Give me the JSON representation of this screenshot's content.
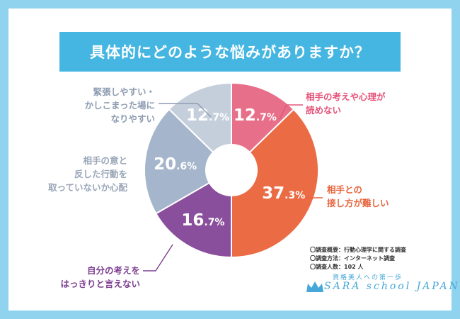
{
  "chart_data": {
    "type": "pie",
    "title": "具体的にどのような悩みがありますか？",
    "slices": [
      {
        "label_lines": [
          "相手の考えや心理が",
          "読めない"
        ],
        "value": 12.7,
        "whole": "12",
        "dec": ".7%",
        "color": "#e76f8a",
        "label_color": "#e6547a"
      },
      {
        "label_lines": [
          "相手との",
          "接し方が難しい"
        ],
        "value": 37.3,
        "whole": "37",
        "dec": ".3%",
        "color": "#eb6b45",
        "label_color": "#e8643c"
      },
      {
        "label_lines": [
          "自分の考えを",
          "はっきりと言えない"
        ],
        "value": 16.7,
        "whole": "16",
        "dec": ".7%",
        "color": "#8a4f9c",
        "label_color": "#7d3f90"
      },
      {
        "label_lines": [
          "相手の意と",
          "反した行動を",
          "取っていないか心配"
        ],
        "value": 20.6,
        "whole": "20",
        "dec": ".6%",
        "color": "#a5b5cb",
        "label_color": "#9aa6b8"
      },
      {
        "label_lines": [
          "緊張しやすい・",
          "かしこまった場に",
          "なりやすい"
        ],
        "value": 12.7,
        "whole": "12",
        "dec": ".7%",
        "color": "#c5cfdc",
        "label_color": "#8e9cb1"
      }
    ]
  },
  "survey_info": {
    "lines": [
      "〇調査概要：行動心理学に関する調査",
      "〇調査方法：インターネット調査",
      "〇調査人数：102 人"
    ]
  },
  "brand": {
    "tagline": "資格美人への第一歩",
    "name": "SARA school JAPAN",
    "color": "#45a8d8"
  }
}
